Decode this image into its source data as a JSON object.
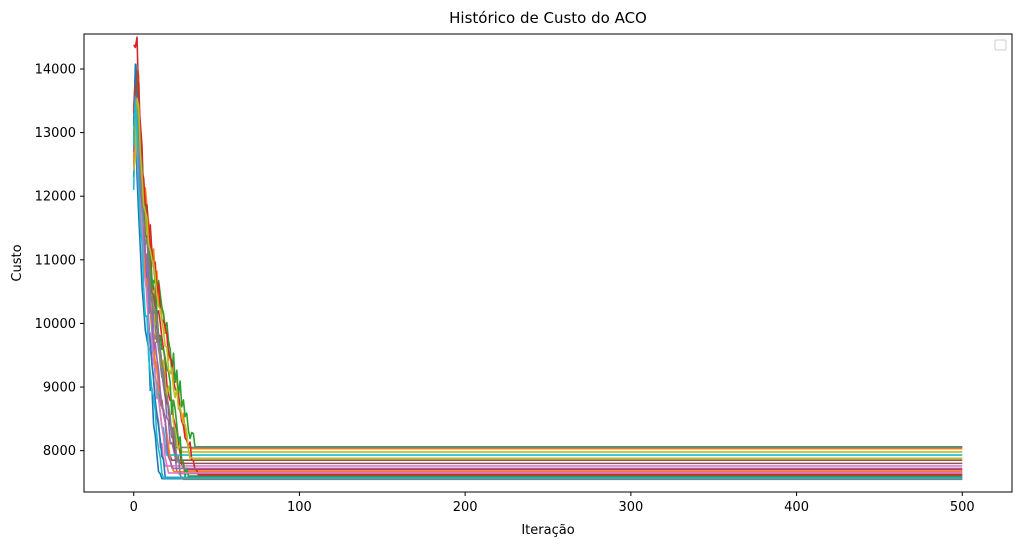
{
  "chart_data": {
    "type": "line",
    "title": "Histórico de Custo do ACO",
    "xlabel": "Iteração",
    "ylabel": "Custo",
    "xlim": [
      -30,
      530
    ],
    "ylim": [
      7350,
      14550
    ],
    "x_ticks": [
      0,
      100,
      200,
      300,
      400,
      500
    ],
    "y_ticks": [
      8000,
      9000,
      10000,
      11000,
      12000,
      13000,
      14000
    ],
    "grid": false,
    "legend": {
      "placement": "upper right",
      "entries": []
    },
    "series": [
      {
        "color": "#1f77b4",
        "start": 12300,
        "peak": 13800,
        "converge_iter": 16,
        "final": 7560,
        "noise": 380
      },
      {
        "color": "#ff7f0e",
        "start": 13000,
        "peak": 14100,
        "converge_iter": 34,
        "final": 8030,
        "noise": 300
      },
      {
        "color": "#2ca02c",
        "start": 12700,
        "peak": 13500,
        "converge_iter": 37,
        "final": 8060,
        "noise": 330
      },
      {
        "color": "#d62728",
        "start": 14380,
        "peak": 14380,
        "converge_iter": 30,
        "final": 7700,
        "noise": 280
      },
      {
        "color": "#9467bd",
        "start": 13200,
        "peak": 14000,
        "converge_iter": 26,
        "final": 7640,
        "noise": 300
      },
      {
        "color": "#8c564b",
        "start": 12900,
        "peak": 13600,
        "converge_iter": 22,
        "final": 7850,
        "noise": 260
      },
      {
        "color": "#e377c2",
        "start": 12600,
        "peak": 14100,
        "converge_iter": 18,
        "final": 7760,
        "noise": 320
      },
      {
        "color": "#7f7f7f",
        "start": 13400,
        "peak": 14200,
        "converge_iter": 25,
        "final": 8050,
        "noise": 300
      },
      {
        "color": "#bcbd22",
        "start": 12800,
        "peak": 13700,
        "converge_iter": 28,
        "final": 7980,
        "noise": 310
      },
      {
        "color": "#17becf",
        "start": 12100,
        "peak": 13900,
        "converge_iter": 20,
        "final": 7930,
        "noise": 290
      },
      {
        "color": "#1f77b4",
        "start": 13100,
        "peak": 14300,
        "converge_iter": 19,
        "final": 7580,
        "noise": 340
      },
      {
        "color": "#ff7f0e",
        "start": 12500,
        "peak": 13400,
        "converge_iter": 24,
        "final": 7670,
        "noise": 300
      },
      {
        "color": "#2ca02c",
        "start": 12900,
        "peak": 14000,
        "converge_iter": 32,
        "final": 7600,
        "noise": 330
      },
      {
        "color": "#d62728",
        "start": 13300,
        "peak": 13900,
        "converge_iter": 38,
        "final": 7620,
        "noise": 280
      },
      {
        "color": "#9467bd",
        "start": 12700,
        "peak": 13800,
        "converge_iter": 23,
        "final": 7720,
        "noise": 300
      },
      {
        "color": "#8c564b",
        "start": 13600,
        "peak": 14100,
        "converge_iter": 27,
        "final": 7800,
        "noise": 260
      },
      {
        "color": "#e377c2",
        "start": 12900,
        "peak": 13500,
        "converge_iter": 21,
        "final": 7650,
        "noise": 320
      },
      {
        "color": "#7f7f7f",
        "start": 13100,
        "peak": 13900,
        "converge_iter": 29,
        "final": 7550,
        "noise": 300
      },
      {
        "color": "#bcbd22",
        "start": 12400,
        "peak": 13600,
        "converge_iter": 35,
        "final": 7880,
        "noise": 310
      },
      {
        "color": "#17becf",
        "start": 12800,
        "peak": 14000,
        "converge_iter": 17,
        "final": 7570,
        "noise": 290
      }
    ]
  }
}
